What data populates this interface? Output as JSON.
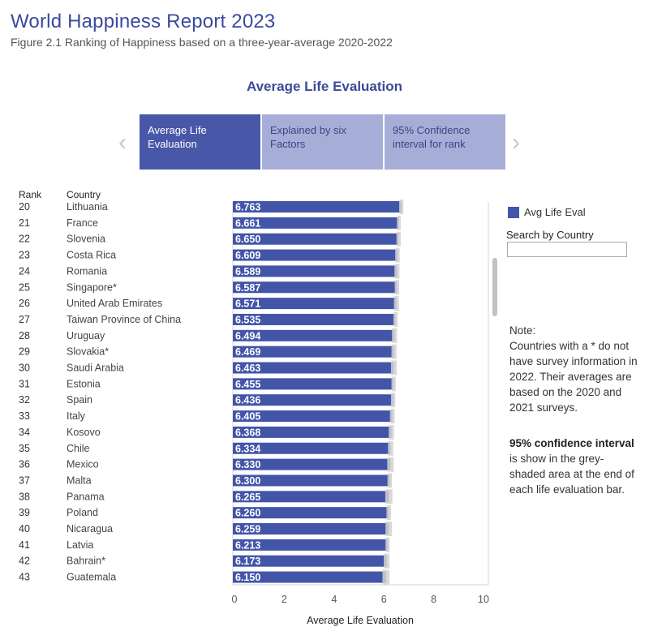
{
  "header": {
    "title": "World Happiness Report 2023",
    "subtitle": "Figure 2.1 Ranking of Happiness based on a three-year-average 2020-2022"
  },
  "section_title": "Average Life Evaluation",
  "nav": {
    "prev_icon": "chevron-left-icon",
    "next_icon": "chevron-right-icon",
    "tabs": [
      {
        "line1": "Average Life",
        "line2": "Evaluation",
        "active": true
      },
      {
        "line1": "Explained by six",
        "line2": "Factors",
        "active": false
      },
      {
        "line1": "95% Confidence",
        "line2": "interval for rank",
        "active": false
      }
    ]
  },
  "columns": {
    "rank": "Rank",
    "country": "Country"
  },
  "legend": {
    "label": "Avg Life Eval",
    "color": "#4355a8"
  },
  "search": {
    "label": "Search by Country",
    "placeholder": "",
    "value": ""
  },
  "note": {
    "title": "Note:",
    "text": "Countries with a * do not have survey information in 2022. Their averages are based on the 2020 and 2021 surveys.",
    "ci_bold": "95% confidence interval",
    "ci_text": "is show in the grey-shaded area at the end of each life evaluation bar."
  },
  "chart_data": {
    "type": "bar",
    "orientation": "horizontal",
    "xlabel": "Average Life Evaluation",
    "xlim": [
      0,
      10
    ],
    "xticks": [
      "0",
      "2",
      "4",
      "6",
      "8",
      "10"
    ],
    "bar_color": "#4355a8",
    "ci_color": "#d2d2d2",
    "rows": [
      {
        "rank": "20",
        "country": "Lithuania",
        "value": 6.763,
        "ci": [
          6.68,
          6.85
        ]
      },
      {
        "rank": "21",
        "country": "France",
        "value": 6.661,
        "ci": [
          6.59,
          6.74
        ]
      },
      {
        "rank": "22",
        "country": "Slovenia",
        "value": 6.65,
        "ci": [
          6.57,
          6.74
        ]
      },
      {
        "rank": "23",
        "country": "Costa Rica",
        "value": 6.609,
        "ci": [
          6.52,
          6.7
        ]
      },
      {
        "rank": "24",
        "country": "Romania",
        "value": 6.589,
        "ci": [
          6.49,
          6.69
        ]
      },
      {
        "rank": "25",
        "country": "Singapore*",
        "value": 6.587,
        "ci": [
          6.5,
          6.68
        ]
      },
      {
        "rank": "26",
        "country": "United Arab Emirates",
        "value": 6.571,
        "ci": [
          6.47,
          6.67
        ]
      },
      {
        "rank": "27",
        "country": "Taiwan Province of China",
        "value": 6.535,
        "ci": [
          6.45,
          6.62
        ]
      },
      {
        "rank": "28",
        "country": "Uruguay",
        "value": 6.494,
        "ci": [
          6.39,
          6.6
        ]
      },
      {
        "rank": "29",
        "country": "Slovakia*",
        "value": 6.469,
        "ci": [
          6.37,
          6.57
        ]
      },
      {
        "rank": "30",
        "country": "Saudi Arabia",
        "value": 6.463,
        "ci": [
          6.35,
          6.58
        ]
      },
      {
        "rank": "31",
        "country": "Estonia",
        "value": 6.455,
        "ci": [
          6.37,
          6.54
        ]
      },
      {
        "rank": "32",
        "country": "Spain",
        "value": 6.436,
        "ci": [
          6.35,
          6.52
        ]
      },
      {
        "rank": "33",
        "country": "Italy",
        "value": 6.405,
        "ci": [
          6.31,
          6.5
        ]
      },
      {
        "rank": "34",
        "country": "Kosovo",
        "value": 6.368,
        "ci": [
          6.26,
          6.47
        ]
      },
      {
        "rank": "35",
        "country": "Chile",
        "value": 6.334,
        "ci": [
          6.23,
          6.44
        ]
      },
      {
        "rank": "36",
        "country": "Mexico",
        "value": 6.33,
        "ci": [
          6.2,
          6.46
        ]
      },
      {
        "rank": "37",
        "country": "Malta",
        "value": 6.3,
        "ci": [
          6.21,
          6.39
        ]
      },
      {
        "rank": "38",
        "country": "Panama",
        "value": 6.265,
        "ci": [
          6.12,
          6.41
        ]
      },
      {
        "rank": "39",
        "country": "Poland",
        "value": 6.26,
        "ci": [
          6.17,
          6.35
        ]
      },
      {
        "rank": "40",
        "country": "Nicaragua",
        "value": 6.259,
        "ci": [
          6.13,
          6.39
        ]
      },
      {
        "rank": "41",
        "country": "Latvia",
        "value": 6.213,
        "ci": [
          6.13,
          6.3
        ]
      },
      {
        "rank": "42",
        "country": "Bahrain*",
        "value": 6.173,
        "ci": [
          6.06,
          6.29
        ]
      },
      {
        "rank": "43",
        "country": "Guatemala",
        "value": 6.15,
        "ci": [
          6.01,
          6.29
        ]
      }
    ]
  }
}
